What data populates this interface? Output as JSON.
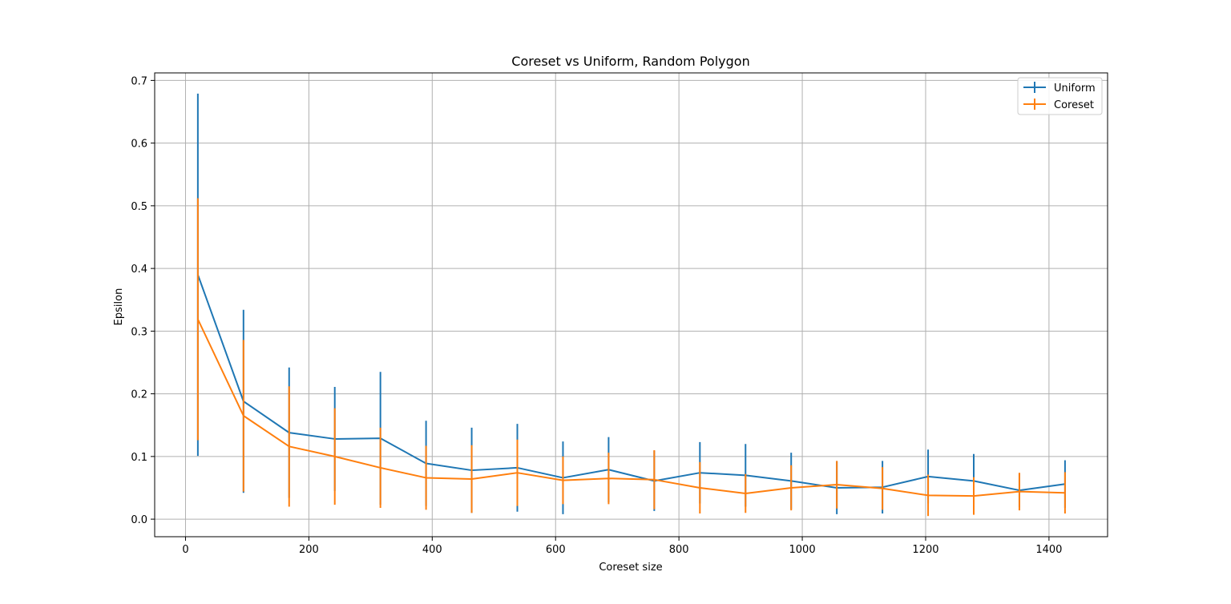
{
  "chart_data": {
    "type": "line",
    "title": "Coreset vs Uniform, Random Polygon",
    "xlabel": "Coreset size",
    "ylabel": "Epsilon",
    "xlim": [
      -50,
      1495
    ],
    "ylim": [
      -0.028,
      0.712
    ],
    "xticks": [
      0,
      200,
      400,
      600,
      800,
      1000,
      1200,
      1400
    ],
    "yticks": [
      0.0,
      0.1,
      0.2,
      0.3,
      0.4,
      0.5,
      0.6,
      0.7
    ],
    "xtick_labels": [
      "0",
      "200",
      "400",
      "600",
      "800",
      "1000",
      "1200",
      "1400"
    ],
    "ytick_labels": [
      "0.0",
      "0.1",
      "0.2",
      "0.3",
      "0.4",
      "0.5",
      "0.6",
      "0.7"
    ],
    "grid": true,
    "legend_position": "top-right",
    "x": [
      20,
      94,
      168,
      242,
      316,
      390,
      464,
      538,
      612,
      686,
      760,
      834,
      908,
      982,
      1056,
      1130,
      1204,
      1278,
      1352,
      1426
    ],
    "series": [
      {
        "name": "Uniform",
        "color": "#1f77b4",
        "values": [
          0.39,
          0.188,
          0.138,
          0.128,
          0.129,
          0.089,
          0.078,
          0.082,
          0.066,
          0.079,
          0.061,
          0.074,
          0.07,
          0.061,
          0.05,
          0.051,
          0.068,
          0.061,
          0.046,
          0.056
        ],
        "errors": [
          0.289,
          0.146,
          0.104,
          0.083,
          0.106,
          0.068,
          0.068,
          0.07,
          0.058,
          0.052,
          0.048,
          0.049,
          0.05,
          0.045,
          0.042,
          0.042,
          0.043,
          0.043,
          0.027,
          0.038
        ]
      },
      {
        "name": "Coreset",
        "color": "#ff7f0e",
        "values": [
          0.319,
          0.165,
          0.116,
          0.1,
          0.082,
          0.066,
          0.064,
          0.074,
          0.062,
          0.065,
          0.063,
          0.05,
          0.041,
          0.05,
          0.055,
          0.049,
          0.038,
          0.037,
          0.044,
          0.042
        ]
      }
    ],
    "coreset_errors": [
      0.193,
      0.121,
      0.096,
      0.077,
      0.064,
      0.051,
      0.054,
      0.053,
      0.038,
      0.041,
      0.047,
      0.041,
      0.031,
      0.036,
      0.038,
      0.034,
      0.033,
      0.03,
      0.03,
      0.033
    ]
  }
}
